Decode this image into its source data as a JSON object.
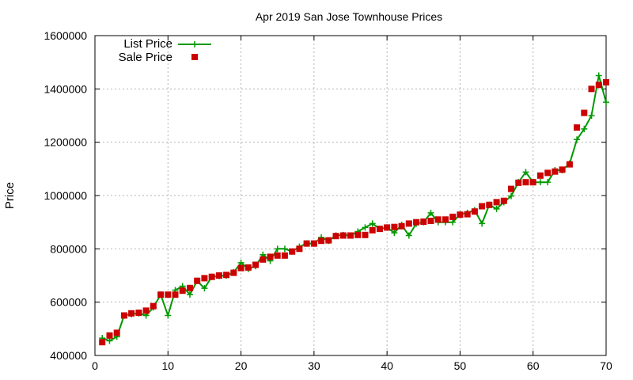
{
  "chart_data": {
    "type": "line",
    "title": "Apr 2019 San Jose Townhouse Prices",
    "xlabel": "",
    "ylabel": "Price",
    "xlim": [
      0,
      70
    ],
    "ylim": [
      400000,
      1600000
    ],
    "xticks": [
      0,
      10,
      20,
      30,
      40,
      50,
      60,
      70
    ],
    "yticks": [
      400000,
      600000,
      800000,
      1000000,
      1200000,
      1400000,
      1600000
    ],
    "grid": true,
    "legend_position": "top-left",
    "series": [
      {
        "name": "List Price",
        "style": "line-plus",
        "color": "#009900",
        "x": [
          1,
          2,
          3,
          4,
          5,
          6,
          7,
          8,
          9,
          10,
          11,
          12,
          13,
          14,
          15,
          16,
          17,
          18,
          19,
          20,
          21,
          22,
          23,
          24,
          25,
          26,
          27,
          28,
          29,
          30,
          31,
          32,
          33,
          34,
          35,
          36,
          37,
          38,
          39,
          40,
          41,
          42,
          43,
          44,
          45,
          46,
          47,
          48,
          49,
          50,
          51,
          52,
          53,
          54,
          55,
          56,
          57,
          58,
          59,
          60,
          61,
          62,
          63,
          64,
          65,
          66,
          67,
          68,
          69,
          70
        ],
        "values": [
          465000,
          455000,
          470000,
          550000,
          555000,
          558000,
          550000,
          580000,
          628000,
          550000,
          645000,
          660000,
          628000,
          680000,
          652000,
          695000,
          698000,
          700000,
          712000,
          748000,
          725000,
          735000,
          778000,
          755000,
          800000,
          800000,
          790000,
          808000,
          820000,
          820000,
          843000,
          830000,
          850000,
          852000,
          850000,
          865000,
          880000,
          895000,
          875000,
          880000,
          860000,
          890000,
          850000,
          895000,
          900000,
          935000,
          900000,
          900000,
          900000,
          930000,
          935000,
          945000,
          895000,
          965000,
          950000,
          975000,
          998000,
          1050000,
          1088000,
          1050000,
          1050000,
          1050000,
          1095000,
          1095000,
          1120000,
          1210000,
          1250000,
          1300000,
          1450000,
          1350000
        ]
      },
      {
        "name": "Sale Price",
        "style": "square-points",
        "color": "#cc0000",
        "x": [
          1,
          2,
          3,
          4,
          5,
          6,
          7,
          8,
          9,
          10,
          11,
          12,
          13,
          14,
          15,
          16,
          17,
          18,
          19,
          20,
          21,
          22,
          23,
          24,
          25,
          26,
          27,
          28,
          29,
          30,
          31,
          32,
          33,
          34,
          35,
          36,
          37,
          38,
          39,
          40,
          41,
          42,
          43,
          44,
          45,
          46,
          47,
          48,
          49,
          50,
          51,
          52,
          53,
          54,
          55,
          56,
          57,
          58,
          59,
          60,
          61,
          62,
          63,
          64,
          65,
          66,
          67,
          68,
          69,
          70
        ],
        "values": [
          450000,
          475000,
          485000,
          550000,
          558000,
          560000,
          568000,
          585000,
          628000,
          628000,
          628000,
          643000,
          653000,
          680000,
          690000,
          695000,
          700000,
          702000,
          710000,
          728000,
          730000,
          740000,
          760000,
          770000,
          775000,
          775000,
          790000,
          800000,
          820000,
          820000,
          830000,
          832000,
          848000,
          850000,
          850000,
          852000,
          852000,
          870000,
          875000,
          880000,
          882000,
          885000,
          895000,
          900000,
          902000,
          905000,
          910000,
          910000,
          920000,
          928000,
          930000,
          940000,
          960000,
          965000,
          975000,
          980000,
          1025000,
          1048000,
          1050000,
          1050000,
          1075000,
          1085000,
          1090000,
          1097000,
          1117000,
          1255000,
          1310000,
          1400000,
          1415000,
          1425000
        ]
      }
    ]
  }
}
